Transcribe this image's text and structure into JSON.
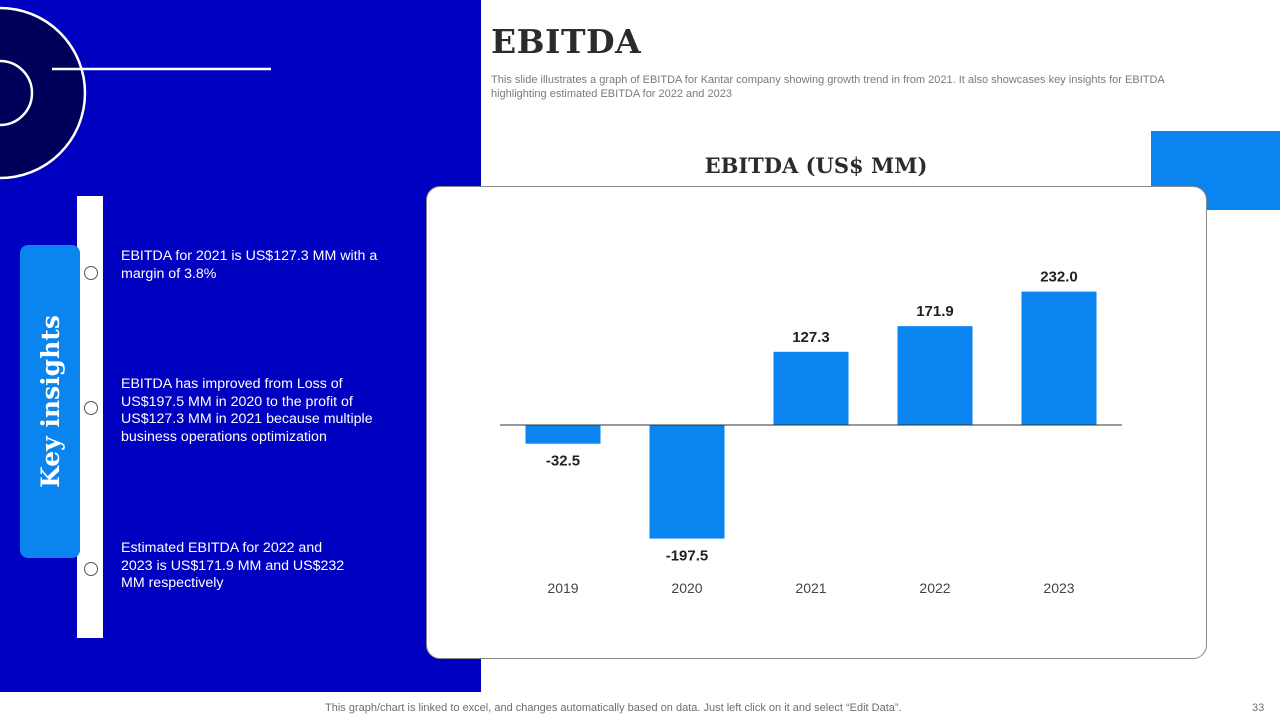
{
  "slide": {
    "title": "EBITDA",
    "subtitle": "This slide illustrates a graph of EBITDA for Kantar company showing growth trend in from 2021. It also showcases key insights for EBITDA highlighting estimated EBITDA for 2022 and 2023",
    "footer_note": "This graph/chart is linked to excel, and changes automatically based on data. Just left click on it and select “Edit Data”.",
    "page_number": "33"
  },
  "insights": {
    "heading": "Key insights",
    "items": [
      "EBITDA for 2021 is US$127.3 MM with a margin of 3.8%",
      "EBITDA has improved from Loss of US$197.5 MM in 2020 to the profit of US$127.3 MM in 2021 because multiple business operations optimization",
      "Estimated EBITDA for 2022 and 2023 is US$171.9 MM and US$232 MM respectively"
    ]
  },
  "colors": {
    "panel": "#0000c0",
    "accent": "#0a84ee",
    "dark_navy": "#00005a",
    "bar": "#0a84ee"
  },
  "chart_data": {
    "type": "bar",
    "title": "EBITDA (US$ MM)",
    "categories": [
      "2019",
      "2020",
      "2021",
      "2022",
      "2023"
    ],
    "values": [
      -32.5,
      -197.5,
      127.3,
      171.9,
      232.0
    ],
    "value_labels": [
      "-32.5",
      "-197.5",
      "127.3",
      "171.9",
      "232.0"
    ],
    "xlabel": "",
    "ylabel": "",
    "ylim": [
      -197.5,
      232.0
    ],
    "grid": false,
    "legend": "none"
  }
}
